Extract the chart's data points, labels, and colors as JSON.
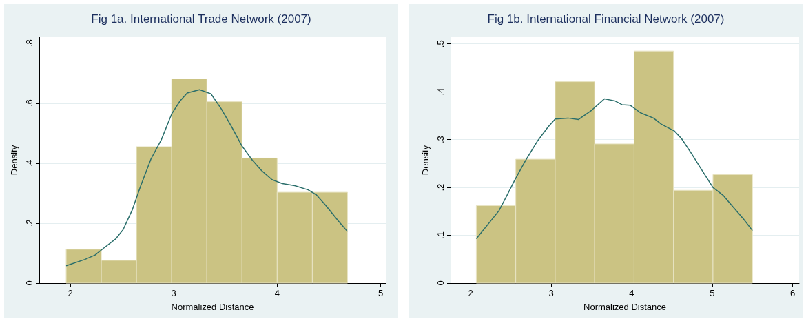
{
  "chart_data": [
    {
      "type": "histogram",
      "title": "Fig 1a. International Trade Network (2007)",
      "xlabel": "Normalized Distance",
      "ylabel": "Density",
      "xlim": [
        1.7,
        5.05
      ],
      "xticks": [
        2,
        3,
        4,
        5
      ],
      "ylim": [
        0,
        0.82
      ],
      "yticks": [
        0,
        {
          "value": 0.2,
          "label": ".2"
        },
        {
          "value": 0.4,
          "label": ".4"
        },
        {
          "value": 0.6,
          "label": ".6"
        },
        {
          "value": 0.8,
          "label": ".8"
        }
      ],
      "grid": "y",
      "marker": "none",
      "series": [
        {
          "color": "#cbc383",
          "bins": [
            1.96,
            2.3,
            2.64,
            2.98,
            3.32,
            3.66,
            4.0,
            4.34,
            4.68
          ],
          "values": [
            0.113,
            0.076,
            0.455,
            0.681,
            0.605,
            0.417,
            0.303,
            0.303
          ]
        },
        {
          "type": "line",
          "color": "#2a6e6b",
          "x": [
            1.96,
            2.14,
            2.24,
            2.32,
            2.44,
            2.51,
            2.6,
            2.68,
            2.78,
            2.88,
            2.98,
            3.06,
            3.13,
            3.25,
            3.36,
            3.46,
            3.56,
            3.66,
            3.76,
            3.85,
            3.95,
            4.05,
            4.17,
            4.3,
            4.38,
            4.47,
            4.59,
            4.68
          ],
          "values": [
            0.058,
            0.079,
            0.094,
            0.116,
            0.148,
            0.178,
            0.245,
            0.324,
            0.414,
            0.478,
            0.564,
            0.607,
            0.634,
            0.645,
            0.631,
            0.581,
            0.521,
            0.457,
            0.41,
            0.375,
            0.345,
            0.332,
            0.325,
            0.311,
            0.294,
            0.259,
            0.208,
            0.172
          ]
        }
      ]
    },
    {
      "type": "histogram",
      "title": "Fig 1b. International Financial Network (2007)",
      "xlabel": "Normalized Distance",
      "ylabel": "Density",
      "xlim": [
        1.75,
        6.08
      ],
      "xticks": [
        2,
        3,
        4,
        5,
        6
      ],
      "ylim": [
        0,
        0.514
      ],
      "yticks": [
        0,
        {
          "value": 0.1,
          "label": ".1"
        },
        {
          "value": 0.2,
          "label": ".2"
        },
        {
          "value": 0.3,
          "label": ".3"
        },
        {
          "value": 0.4,
          "label": ".4"
        },
        {
          "value": 0.5,
          "label": ".5"
        }
      ],
      "grid": "y",
      "marker": "none",
      "series": [
        {
          "color": "#cbc383",
          "bins": [
            2.07,
            2.56,
            3.05,
            3.54,
            4.03,
            4.52,
            5.01,
            5.5
          ],
          "values": [
            0.162,
            0.259,
            0.421,
            0.291,
            0.485,
            0.194,
            0.227
          ]
        },
        {
          "type": "line",
          "color": "#2a6e6b",
          "x": [
            2.07,
            2.22,
            2.35,
            2.45,
            2.54,
            2.67,
            2.83,
            2.96,
            3.05,
            3.21,
            3.34,
            3.5,
            3.66,
            3.79,
            3.88,
            3.98,
            4.11,
            4.27,
            4.37,
            4.53,
            4.62,
            4.75,
            4.88,
            5.01,
            5.14,
            5.26,
            5.39,
            5.5
          ],
          "values": [
            0.093,
            0.124,
            0.151,
            0.183,
            0.213,
            0.253,
            0.297,
            0.326,
            0.343,
            0.345,
            0.342,
            0.361,
            0.385,
            0.381,
            0.373,
            0.372,
            0.356,
            0.345,
            0.332,
            0.318,
            0.302,
            0.269,
            0.234,
            0.2,
            0.183,
            0.159,
            0.134,
            0.11
          ]
        }
      ]
    }
  ]
}
